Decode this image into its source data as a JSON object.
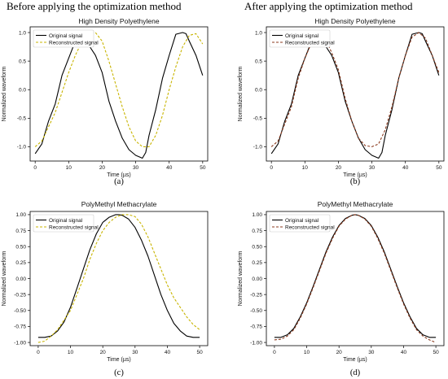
{
  "headers": {
    "left": "Before applying the optimization method",
    "right": "After applying the optimization method"
  },
  "chart_data": [
    {
      "type": "line",
      "panel": "(a)",
      "title": "High Density Polyethylene",
      "xlabel": "Time (µs)",
      "ylabel": "Normalized waveform",
      "xlim": [
        -1.5,
        51.5
      ],
      "ylim": [
        -1.25,
        1.1
      ],
      "xticks": [
        "0",
        "10",
        "20",
        "30",
        "40",
        "50"
      ],
      "yticks": [
        "-1.0",
        "-0.5",
        "0.0",
        "0.5",
        "1.0"
      ],
      "legend_position": "top-left",
      "series": [
        {
          "name": "Original signal",
          "color": "#000000",
          "style": "solid",
          "x": [
            0,
            2,
            4,
            6,
            8,
            10,
            12,
            14,
            15,
            16,
            18,
            20,
            22,
            24,
            26,
            28,
            30,
            32,
            33,
            34,
            36,
            38,
            40,
            42,
            44,
            45,
            46,
            48,
            50
          ],
          "y": [
            -1.12,
            -0.95,
            -0.55,
            -0.25,
            0.25,
            0.55,
            0.85,
            0.98,
            0.96,
            0.78,
            0.6,
            0.3,
            -0.2,
            -0.55,
            -0.85,
            -1.05,
            -1.15,
            -1.2,
            -1.1,
            -0.8,
            -0.35,
            0.2,
            0.6,
            0.97,
            1.0,
            0.98,
            0.85,
            0.6,
            0.25
          ]
        },
        {
          "name": "Reconstructed signal",
          "color": "#c8b400",
          "style": "dashed",
          "x": [
            0,
            2,
            4,
            6,
            8,
            10,
            12,
            14,
            16,
            18,
            20,
            22,
            24,
            26,
            28,
            30,
            32,
            34,
            36,
            38,
            40,
            42,
            44,
            46,
            48,
            50
          ],
          "y": [
            -1.0,
            -0.9,
            -0.65,
            -0.4,
            -0.05,
            0.3,
            0.6,
            0.85,
            1.0,
            1.0,
            0.85,
            0.5,
            0.1,
            -0.3,
            -0.65,
            -0.9,
            -1.0,
            -1.0,
            -0.8,
            -0.45,
            0.0,
            0.4,
            0.75,
            0.95,
            0.98,
            0.8
          ]
        }
      ]
    },
    {
      "type": "line",
      "panel": "(b)",
      "title": "High Density Polyethylene",
      "xlabel": "Time (µs)",
      "ylabel": "Normalized waveform",
      "xlim": [
        -1.5,
        51.5
      ],
      "ylim": [
        -1.25,
        1.1
      ],
      "xticks": [
        "0",
        "10",
        "20",
        "30",
        "40",
        "50"
      ],
      "yticks": [
        "-1.0",
        "-0.5",
        "0.0",
        "0.5",
        "1.0"
      ],
      "legend_position": "top-left",
      "series": [
        {
          "name": "Original signal",
          "color": "#000000",
          "style": "solid",
          "x": [
            0,
            2,
            4,
            6,
            8,
            10,
            12,
            14,
            15,
            16,
            18,
            20,
            22,
            24,
            26,
            28,
            30,
            32,
            33,
            34,
            36,
            38,
            40,
            42,
            44,
            45,
            46,
            48,
            50
          ],
          "y": [
            -1.12,
            -0.95,
            -0.55,
            -0.25,
            0.25,
            0.55,
            0.85,
            0.98,
            0.96,
            0.78,
            0.6,
            0.3,
            -0.2,
            -0.55,
            -0.85,
            -1.05,
            -1.15,
            -1.2,
            -1.1,
            -0.8,
            -0.35,
            0.2,
            0.6,
            0.97,
            1.0,
            0.98,
            0.85,
            0.6,
            0.25
          ]
        },
        {
          "name": "Reconstructed signal",
          "color": "#8b3a1e",
          "style": "dashed",
          "x": [
            0,
            2,
            4,
            6,
            8,
            10,
            12,
            14,
            16,
            18,
            20,
            22,
            24,
            26,
            28,
            30,
            32,
            34,
            36,
            38,
            40,
            42,
            44,
            46,
            48,
            50
          ],
          "y": [
            -1.0,
            -0.9,
            -0.6,
            -0.3,
            0.2,
            0.55,
            0.82,
            0.95,
            0.9,
            0.65,
            0.35,
            -0.15,
            -0.55,
            -0.85,
            -0.98,
            -1.0,
            -0.95,
            -0.7,
            -0.3,
            0.2,
            0.6,
            0.92,
            1.0,
            0.9,
            0.6,
            0.3
          ]
        }
      ]
    },
    {
      "type": "line",
      "panel": "(c)",
      "title": "PolyMethyl Methacrylate",
      "xlabel": "Time (µs)",
      "ylabel": "Normalized waveform",
      "xlim": [
        -2.5,
        52.5
      ],
      "ylim": [
        -1.05,
        1.05
      ],
      "xticks": [
        "0",
        "10",
        "20",
        "30",
        "40",
        "50"
      ],
      "yticks": [
        "-1.00",
        "-0.75",
        "-0.50",
        "-0.25",
        "0.00",
        "0.25",
        "0.50",
        "0.75",
        "1.00"
      ],
      "legend_position": "top-left",
      "series": [
        {
          "name": "Original signal",
          "color": "#000000",
          "style": "solid",
          "x": [
            0,
            2,
            4,
            6,
            8,
            10,
            12,
            14,
            16,
            18,
            20,
            22,
            24,
            25,
            26,
            28,
            30,
            32,
            34,
            36,
            38,
            40,
            42,
            44,
            46,
            48,
            50
          ],
          "y": [
            -0.92,
            -0.92,
            -0.9,
            -0.82,
            -0.68,
            -0.45,
            -0.15,
            0.15,
            0.45,
            0.7,
            0.88,
            0.96,
            1.0,
            1.0,
            0.99,
            0.93,
            0.8,
            0.6,
            0.35,
            0.05,
            -0.25,
            -0.5,
            -0.7,
            -0.82,
            -0.9,
            -0.92,
            -0.92
          ]
        },
        {
          "name": "Reconstructed signal",
          "color": "#c8b400",
          "style": "dashed",
          "x": [
            0,
            2,
            4,
            6,
            8,
            10,
            12,
            14,
            16,
            18,
            20,
            22,
            24,
            26,
            28,
            30,
            32,
            34,
            36,
            38,
            40,
            42,
            44,
            46,
            48,
            50
          ],
          "y": [
            -1.0,
            -0.98,
            -0.9,
            -0.8,
            -0.65,
            -0.5,
            -0.25,
            0.0,
            0.3,
            0.55,
            0.75,
            0.88,
            0.96,
            1.0,
            1.0,
            0.97,
            0.85,
            0.65,
            0.4,
            0.15,
            -0.1,
            -0.3,
            -0.45,
            -0.6,
            -0.72,
            -0.8
          ]
        }
      ]
    },
    {
      "type": "line",
      "panel": "(d)",
      "title": "PolyMethyl Methacrylate",
      "xlabel": "Time (µs)",
      "ylabel": "Normalized waveform",
      "xlim": [
        -2.5,
        52.5
      ],
      "ylim": [
        -1.05,
        1.05
      ],
      "xticks": [
        "0",
        "10",
        "20",
        "30",
        "40",
        "50"
      ],
      "yticks": [
        "-1.00",
        "-0.75",
        "-0.50",
        "-0.25",
        "0.00",
        "0.25",
        "0.50",
        "0.75",
        "1.00"
      ],
      "legend_position": "top-left",
      "series": [
        {
          "name": "Original signal",
          "color": "#000000",
          "style": "solid",
          "x": [
            0,
            2,
            4,
            6,
            8,
            10,
            12,
            14,
            16,
            18,
            20,
            22,
            24,
            25,
            26,
            28,
            30,
            32,
            34,
            36,
            38,
            40,
            42,
            44,
            46,
            48,
            50
          ],
          "y": [
            -0.92,
            -0.92,
            -0.88,
            -0.78,
            -0.6,
            -0.38,
            -0.12,
            0.15,
            0.42,
            0.65,
            0.83,
            0.94,
            0.99,
            1.0,
            0.99,
            0.94,
            0.83,
            0.65,
            0.42,
            0.15,
            -0.12,
            -0.38,
            -0.6,
            -0.78,
            -0.88,
            -0.92,
            -0.92
          ]
        },
        {
          "name": "Reconstructed signal",
          "color": "#8b3a1e",
          "style": "dashed",
          "x": [
            0,
            2,
            4,
            6,
            8,
            10,
            12,
            14,
            16,
            18,
            20,
            22,
            24,
            25,
            26,
            28,
            30,
            32,
            34,
            36,
            38,
            40,
            42,
            44,
            46,
            48,
            50
          ],
          "y": [
            -0.96,
            -0.95,
            -0.9,
            -0.8,
            -0.62,
            -0.4,
            -0.14,
            0.13,
            0.4,
            0.63,
            0.82,
            0.93,
            0.99,
            1.0,
            0.99,
            0.93,
            0.82,
            0.63,
            0.4,
            0.13,
            -0.14,
            -0.4,
            -0.62,
            -0.8,
            -0.9,
            -0.96,
            -1.0
          ]
        }
      ]
    }
  ]
}
